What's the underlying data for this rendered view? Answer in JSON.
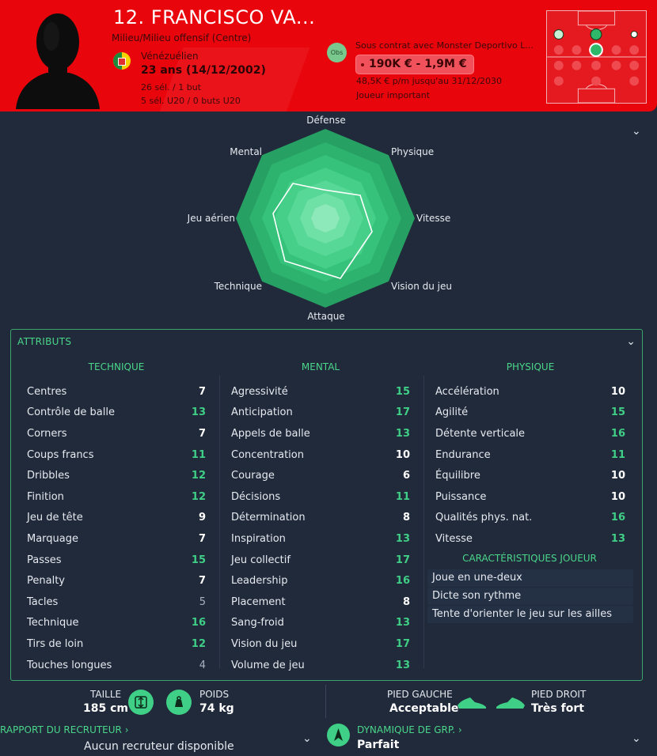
{
  "header": {
    "name": "12. FRANCISCO VA...",
    "position": "Milieu/Milieu offensif (Centre)",
    "nationality": "Vénézuélien",
    "age": "23 ans (14/12/2002)",
    "caps": "26 sél. / 1 but",
    "caps_u20": "5 sél. U20 / 0 buts U20",
    "obs_label": "Obs",
    "contract": "Sous contrat avec Monster Deportivo L...",
    "value": "190K € - 1,9M €",
    "wage": "48,5K € p/m jusqu'au 31/12/2030",
    "status": "Joueur important",
    "colors": {
      "header_bg": "#e8050b",
      "accent": "#3fcf86"
    }
  },
  "radar": {
    "labels": {
      "defense": "Défense",
      "physique": "Physique",
      "vitesse": "Vitesse",
      "vision": "Vision du jeu",
      "attaque": "Attaque",
      "technique": "Technique",
      "jeu_aerien": "Jeu aérien",
      "mental": "Mental"
    }
  },
  "attributes": {
    "title": "ATTRIBUTS",
    "technique": {
      "header": "TECHNIQUE",
      "items": [
        {
          "label": "Centres",
          "value": "7",
          "c": "w"
        },
        {
          "label": "Contrôle de balle",
          "value": "13",
          "c": "g"
        },
        {
          "label": "Corners",
          "value": "7",
          "c": "w"
        },
        {
          "label": "Coups francs",
          "value": "11",
          "c": "g"
        },
        {
          "label": "Dribbles",
          "value": "12",
          "c": "g"
        },
        {
          "label": "Finition",
          "value": "12",
          "c": "g"
        },
        {
          "label": "Jeu de tête",
          "value": "9",
          "c": "w"
        },
        {
          "label": "Marquage",
          "value": "7",
          "c": "w"
        },
        {
          "label": "Passes",
          "value": "15",
          "c": "g"
        },
        {
          "label": "Penalty",
          "value": "7",
          "c": "w"
        },
        {
          "label": "Tacles",
          "value": "5",
          "c": "gr"
        },
        {
          "label": "Technique",
          "value": "16",
          "c": "g"
        },
        {
          "label": "Tirs de loin",
          "value": "12",
          "c": "g"
        },
        {
          "label": "Touches longues",
          "value": "4",
          "c": "gr"
        }
      ]
    },
    "mental": {
      "header": "MENTAL",
      "items": [
        {
          "label": "Agressivité",
          "value": "15",
          "c": "g"
        },
        {
          "label": "Anticipation",
          "value": "17",
          "c": "g"
        },
        {
          "label": "Appels de balle",
          "value": "13",
          "c": "g"
        },
        {
          "label": "Concentration",
          "value": "10",
          "c": "w"
        },
        {
          "label": "Courage",
          "value": "6",
          "c": "w"
        },
        {
          "label": "Décisions",
          "value": "11",
          "c": "g"
        },
        {
          "label": "Détermination",
          "value": "8",
          "c": "w"
        },
        {
          "label": "Inspiration",
          "value": "13",
          "c": "g"
        },
        {
          "label": "Jeu collectif",
          "value": "17",
          "c": "g"
        },
        {
          "label": "Leadership",
          "value": "16",
          "c": "g"
        },
        {
          "label": "Placement",
          "value": "8",
          "c": "w"
        },
        {
          "label": "Sang-froid",
          "value": "13",
          "c": "g"
        },
        {
          "label": "Vision du jeu",
          "value": "17",
          "c": "g"
        },
        {
          "label": "Volume de jeu",
          "value": "13",
          "c": "g"
        }
      ]
    },
    "physique": {
      "header": "PHYSIQUE",
      "items": [
        {
          "label": "Accélération",
          "value": "10",
          "c": "w"
        },
        {
          "label": "Agilité",
          "value": "15",
          "c": "g"
        },
        {
          "label": "Détente verticale",
          "value": "16",
          "c": "g"
        },
        {
          "label": "Endurance",
          "value": "11",
          "c": "g"
        },
        {
          "label": "Équilibre",
          "value": "10",
          "c": "w"
        },
        {
          "label": "Puissance",
          "value": "10",
          "c": "w"
        },
        {
          "label": "Qualités phys. nat.",
          "value": "16",
          "c": "g"
        },
        {
          "label": "Vitesse",
          "value": "13",
          "c": "g"
        }
      ]
    },
    "characteristics": {
      "header": "CARACTÉRISTIQUES JOUEUR",
      "items": [
        "Joue en une-deux",
        "Dicte son rythme",
        "Tente d'orienter le jeu sur les ailles"
      ]
    }
  },
  "bottom": {
    "height_label": "TAILLE",
    "height_value": "185 cm",
    "weight_label": "POIDS",
    "weight_value": "74 kg",
    "left_foot_label": "PIED GAUCHE",
    "left_foot_value": "Acceptable",
    "right_foot_label": "PIED DROIT",
    "right_foot_value": "Très fort",
    "scout_label": "RAPPORT DU RECRUTEUR ›",
    "scout_value": "Aucun recruteur disponible",
    "dyn_label": "DYNAMIQUE DE GRP. ›",
    "dyn_value": "Parfait"
  }
}
